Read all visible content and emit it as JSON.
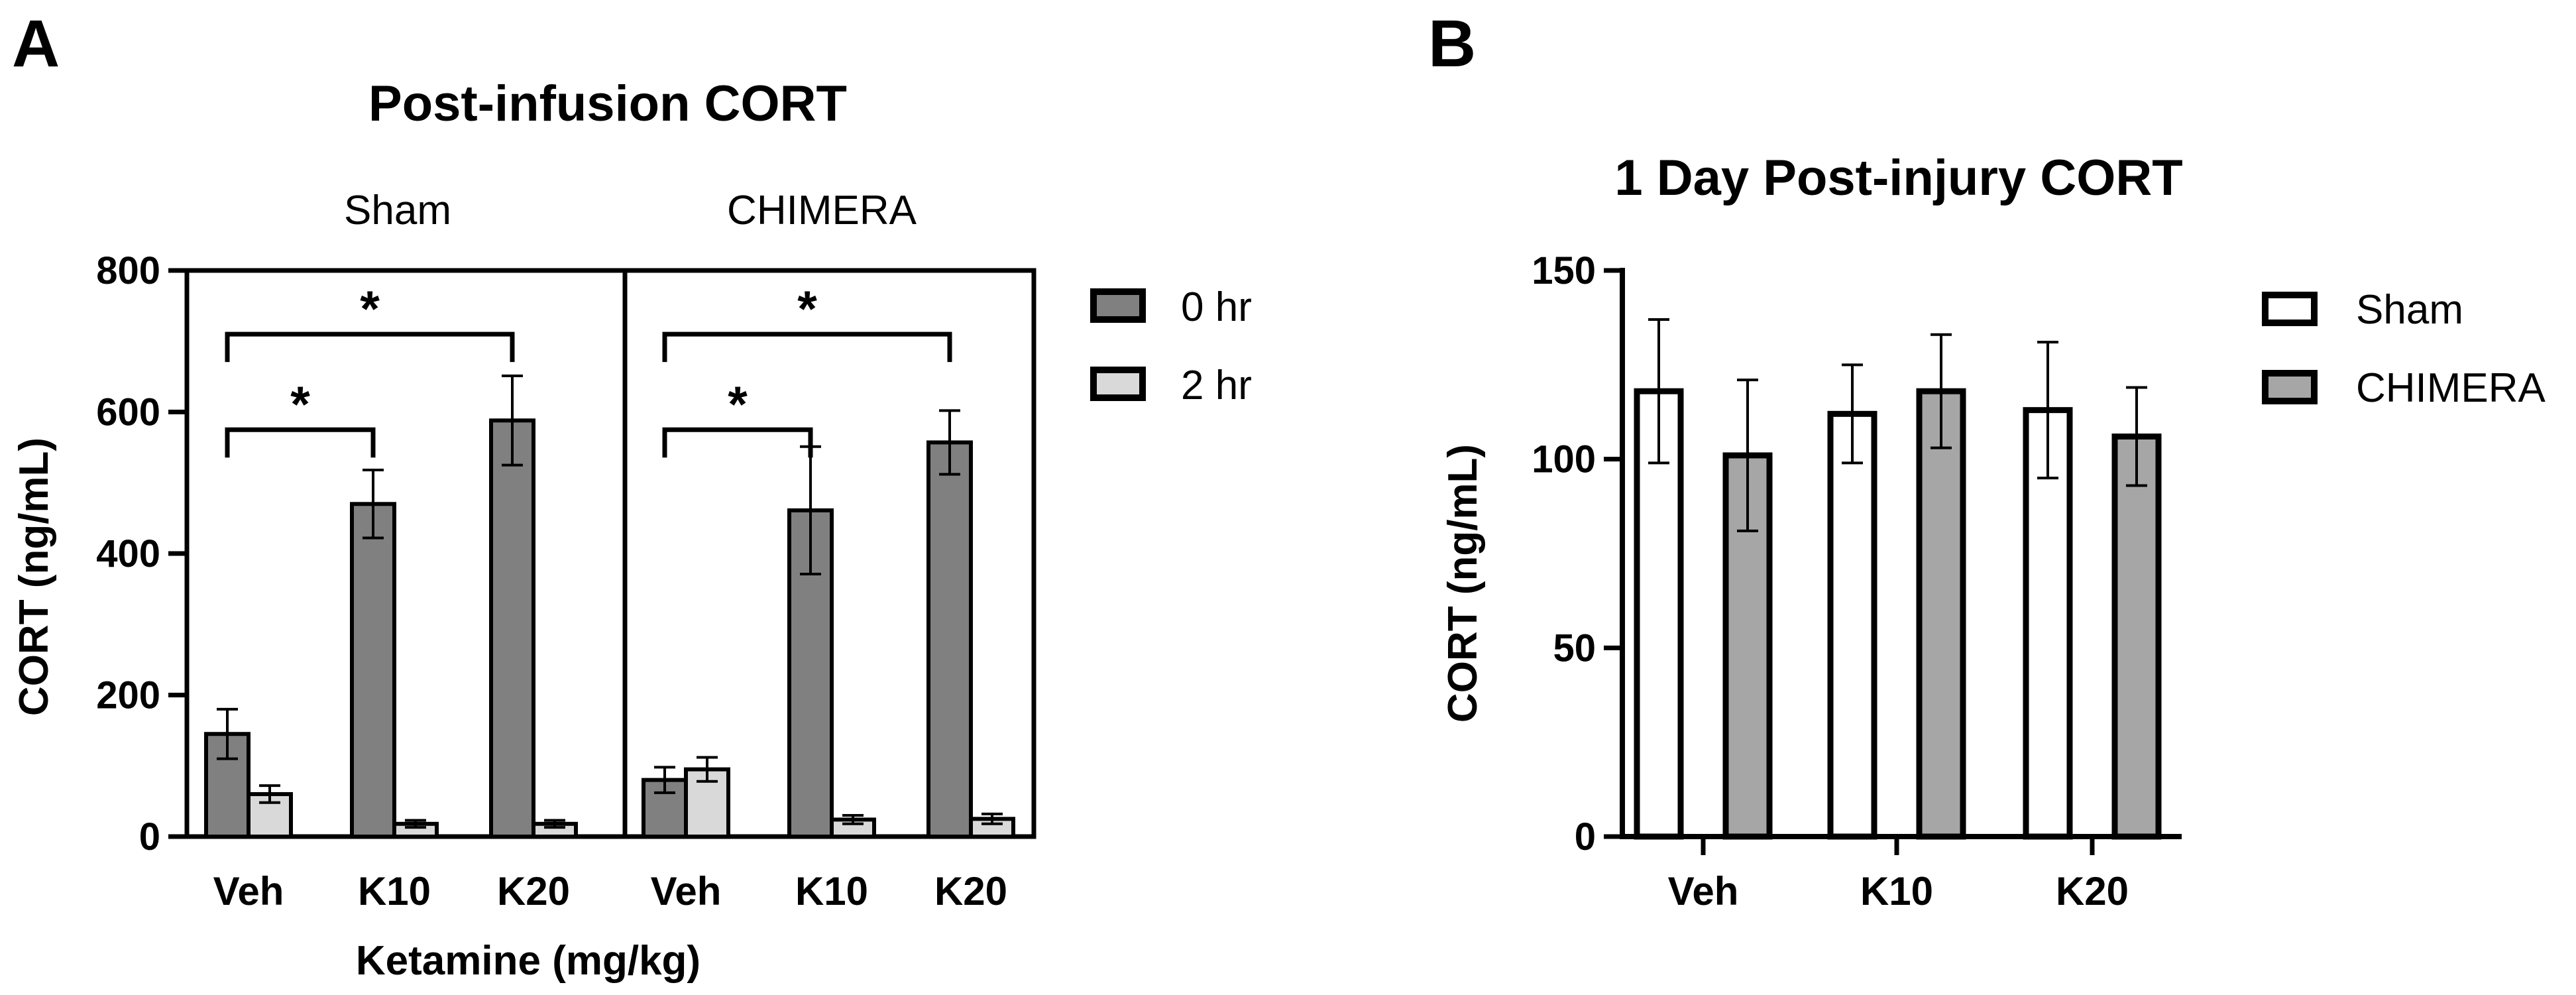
{
  "chart_data": [
    {
      "panel": "A",
      "type": "bar",
      "title": "Post-infusion CORT",
      "xlabel": "Ketamine (mg/kg)",
      "ylabel": "CORT (ng/mL)",
      "ylim": [
        0,
        800
      ],
      "yticks": [
        0,
        200,
        400,
        600,
        800
      ],
      "group_labels": [
        "Sham",
        "CHIMERA"
      ],
      "categories": [
        "Veh",
        "K10",
        "K20",
        "Veh",
        "K10",
        "K20"
      ],
      "series": [
        {
          "name": "0 hr",
          "color": "#808080",
          "values": [
            145,
            470,
            588,
            80,
            461,
            557
          ],
          "errors": [
            35,
            48,
            63,
            18,
            90,
            45
          ]
        },
        {
          "name": "2 hr",
          "color": "#d9d9d9",
          "values": [
            60,
            18,
            18,
            95,
            24,
            25
          ],
          "errors": [
            12,
            5,
            5,
            17,
            6,
            7
          ]
        }
      ],
      "annotations": [
        {
          "from": 0,
          "to": 1,
          "label": "*",
          "y": 575
        },
        {
          "from": 0,
          "to": 2,
          "label": "*",
          "y": 710
        },
        {
          "from": 3,
          "to": 4,
          "label": "*",
          "y": 575
        },
        {
          "from": 3,
          "to": 5,
          "label": "*",
          "y": 710
        }
      ]
    },
    {
      "panel": "B",
      "type": "bar",
      "title": "1 Day Post-injury CORT",
      "xlabel": "",
      "ylabel": "CORT (ng/mL)",
      "ylim": [
        0,
        150
      ],
      "yticks": [
        0,
        50,
        100,
        150
      ],
      "categories": [
        "Veh",
        "K10",
        "K20"
      ],
      "series": [
        {
          "name": "Sham",
          "color": "#ffffff",
          "values": [
            118,
            112,
            113
          ],
          "errors": [
            19,
            13,
            18
          ]
        },
        {
          "name": "CHIMERA",
          "color": "#a6a6a6",
          "values": [
            101,
            118,
            106
          ],
          "errors": [
            20,
            15,
            13
          ]
        }
      ]
    }
  ]
}
